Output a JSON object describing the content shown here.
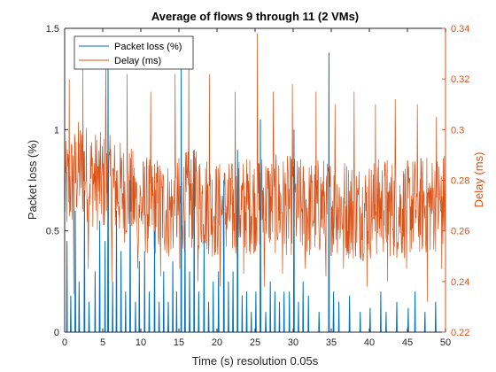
{
  "colors": {
    "packet_loss": "#0072BD",
    "delay": "#D95319",
    "axis": "#262626"
  },
  "chart_data": {
    "type": "line",
    "title": "Average of flows 9 through 11 (2 VMs)",
    "xlabel": "Time (s) resolution 0.05s",
    "ylabel_left": "Packet loss (%)",
    "ylabel_right": "Delay (ms)",
    "xlim": [
      0,
      50
    ],
    "ylim_left": [
      0,
      1.5
    ],
    "ylim_right": [
      0.22,
      0.34
    ],
    "x_ticks": [
      "0",
      "5",
      "10",
      "15",
      "20",
      "25",
      "30",
      "35",
      "40",
      "45",
      "50"
    ],
    "y_left_ticks": [
      "0",
      "0.5",
      "1",
      "1.5"
    ],
    "y_right_ticks": [
      "0.22",
      "0.24",
      "0.26",
      "0.28",
      "0.3",
      "0.32",
      "0.34"
    ],
    "legend_position": "top-left",
    "grid": false,
    "series": [
      {
        "name": "Packet loss (%)",
        "axis": "left",
        "spikes": [
          [
            0.3,
            0.45
          ],
          [
            0.8,
            0.18
          ],
          [
            1.4,
            0.6
          ],
          [
            1.9,
            0.25
          ],
          [
            2.6,
            0.7
          ],
          [
            3.2,
            0.15
          ],
          [
            4.0,
            0.3
          ],
          [
            4.6,
            0.55
          ],
          [
            5.3,
            0.45
          ],
          [
            5.7,
            1.35
          ],
          [
            6.3,
            0.25
          ],
          [
            6.8,
            0.6
          ],
          [
            7.4,
            0.4
          ],
          [
            8.0,
            0.2
          ],
          [
            8.6,
            0.75
          ],
          [
            9.3,
            0.15
          ],
          [
            9.8,
            0.35
          ],
          [
            10.5,
            0.4
          ],
          [
            11.1,
            0.2
          ],
          [
            11.8,
            0.5
          ],
          [
            12.4,
            0.15
          ],
          [
            13.0,
            0.3
          ],
          [
            13.6,
            0.15
          ],
          [
            14.2,
            0.35
          ],
          [
            14.7,
            0.2
          ],
          [
            15.3,
            1.32
          ],
          [
            15.8,
            0.55
          ],
          [
            16.4,
            0.3
          ],
          [
            17.0,
            0.9
          ],
          [
            17.6,
            0.2
          ],
          [
            18.3,
            0.45
          ],
          [
            18.9,
            0.15
          ],
          [
            19.5,
            0.25
          ],
          [
            20.2,
            0.3
          ],
          [
            20.9,
            0.75
          ],
          [
            21.5,
            0.25
          ],
          [
            22.1,
            0.3
          ],
          [
            22.7,
            0.9
          ],
          [
            23.3,
            0.18
          ],
          [
            23.9,
            0.2
          ],
          [
            24.5,
            0.1
          ],
          [
            25.1,
            0.2
          ],
          [
            25.7,
            1.05
          ],
          [
            26.4,
            0.1
          ],
          [
            27.0,
            0.25
          ],
          [
            27.6,
            0.2
          ],
          [
            28.2,
            0.15
          ],
          [
            28.8,
            0.2
          ],
          [
            29.5,
            0.2
          ],
          [
            30.1,
            1.0
          ],
          [
            30.7,
            0.15
          ],
          [
            31.3,
            0.25
          ],
          [
            32.0,
            0.18
          ],
          [
            33.4,
            0.1
          ],
          [
            34.7,
            1.38
          ],
          [
            35.3,
            0.2
          ],
          [
            36.0,
            0.15
          ],
          [
            37.4,
            0.18
          ],
          [
            38.8,
            0.1
          ],
          [
            40.1,
            0.12
          ],
          [
            41.5,
            0.2
          ],
          [
            42.2,
            0.1
          ],
          [
            43.6,
            0.15
          ],
          [
            45.1,
            0.12
          ],
          [
            46.0,
            0.2
          ],
          [
            47.3,
            0.1
          ],
          [
            48.7,
            0.15
          ]
        ]
      },
      {
        "name": "Delay (ms)",
        "axis": "right",
        "anchors": [
          [
            0,
            0.275
          ],
          [
            2,
            0.285
          ],
          [
            4,
            0.28
          ],
          [
            6,
            0.278
          ],
          [
            8,
            0.275
          ],
          [
            10,
            0.27
          ],
          [
            12,
            0.27
          ],
          [
            14,
            0.268
          ],
          [
            16,
            0.272
          ],
          [
            18,
            0.272
          ],
          [
            20,
            0.268
          ],
          [
            22,
            0.268
          ],
          [
            24,
            0.27
          ],
          [
            26,
            0.272
          ],
          [
            28,
            0.27
          ],
          [
            30,
            0.27
          ],
          [
            32,
            0.268
          ],
          [
            34,
            0.27
          ],
          [
            36,
            0.27
          ],
          [
            38,
            0.268
          ],
          [
            40,
            0.268
          ],
          [
            42,
            0.27
          ],
          [
            44,
            0.268
          ],
          [
            46,
            0.27
          ],
          [
            48,
            0.27
          ],
          [
            50,
            0.272
          ]
        ],
        "peaks": [
          [
            0.6,
            0.32
          ],
          [
            1.2,
            0.235
          ],
          [
            2.4,
            0.325
          ],
          [
            3.1,
            0.245
          ],
          [
            5.4,
            0.33
          ],
          [
            6.2,
            0.24
          ],
          [
            8.2,
            0.322
          ],
          [
            9.6,
            0.245
          ],
          [
            11.3,
            0.315
          ],
          [
            12.6,
            0.242
          ],
          [
            14.5,
            0.322
          ],
          [
            15.1,
            0.245
          ],
          [
            16.3,
            0.33
          ],
          [
            17.5,
            0.24
          ],
          [
            19.0,
            0.322
          ],
          [
            20.4,
            0.238
          ],
          [
            22.4,
            0.315
          ],
          [
            23.5,
            0.243
          ],
          [
            25.3,
            0.338
          ],
          [
            26.2,
            0.238
          ],
          [
            27.4,
            0.315
          ],
          [
            28.6,
            0.243
          ],
          [
            29.9,
            0.318
          ],
          [
            31.6,
            0.245
          ],
          [
            33.0,
            0.315
          ],
          [
            34.3,
            0.242
          ],
          [
            35.5,
            0.31
          ],
          [
            36.6,
            0.245
          ],
          [
            38.0,
            0.315
          ],
          [
            39.7,
            0.238
          ],
          [
            40.8,
            0.31
          ],
          [
            42.4,
            0.24
          ],
          [
            43.4,
            0.312
          ],
          [
            44.9,
            0.245
          ],
          [
            46.3,
            0.31
          ],
          [
            47.6,
            0.232
          ],
          [
            48.8,
            0.305
          ],
          [
            49.5,
            0.245
          ]
        ],
        "amplitude": 0.02,
        "points_count": 1000
      }
    ]
  }
}
